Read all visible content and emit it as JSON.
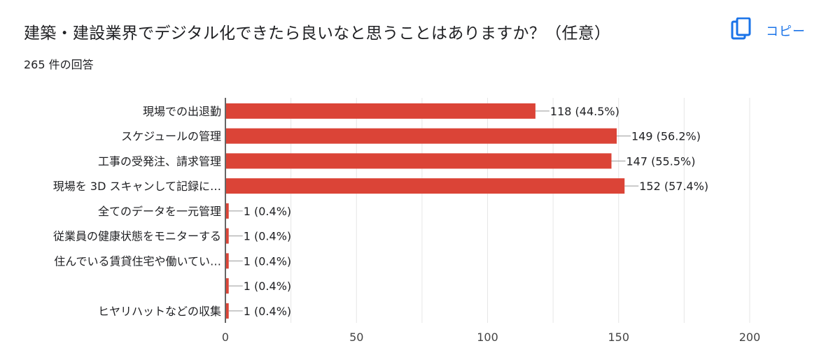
{
  "header": {
    "title": "建築・建設業界でデジタル化できたら良いなと思うことはありますか？（任意）",
    "response_count": "265 件の回答",
    "copy_label": "コピー",
    "copy_icon": "copy-icon",
    "accent_color": "#1a73e8"
  },
  "chart_data": {
    "type": "bar",
    "orientation": "horizontal",
    "bar_color": "#db4437",
    "categories": [
      "現場での出退勤",
      "スケジュールの管理",
      "工事の受発注、請求管理",
      "現場を 3D スキャンして記録に…",
      "全てのデータを一元管理",
      "従業員の健康状態をモニターする",
      "住んでいる賃貸住宅や働いてい…",
      "",
      "ヒヤリハットなどの収集"
    ],
    "values": [
      118,
      149,
      147,
      152,
      1,
      1,
      1,
      1,
      1
    ],
    "value_labels": [
      "118 (44.5%)",
      "149 (56.2%)",
      "147 (55.5%)",
      "152 (57.4%)",
      "1 (0.4%)",
      "1 (0.4%)",
      "1 (0.4%)",
      "1 (0.4%)",
      "1 (0.4%)"
    ],
    "xlim": [
      0,
      200
    ],
    "xticks": [
      0,
      50,
      100,
      150,
      200
    ],
    "grid": true
  }
}
